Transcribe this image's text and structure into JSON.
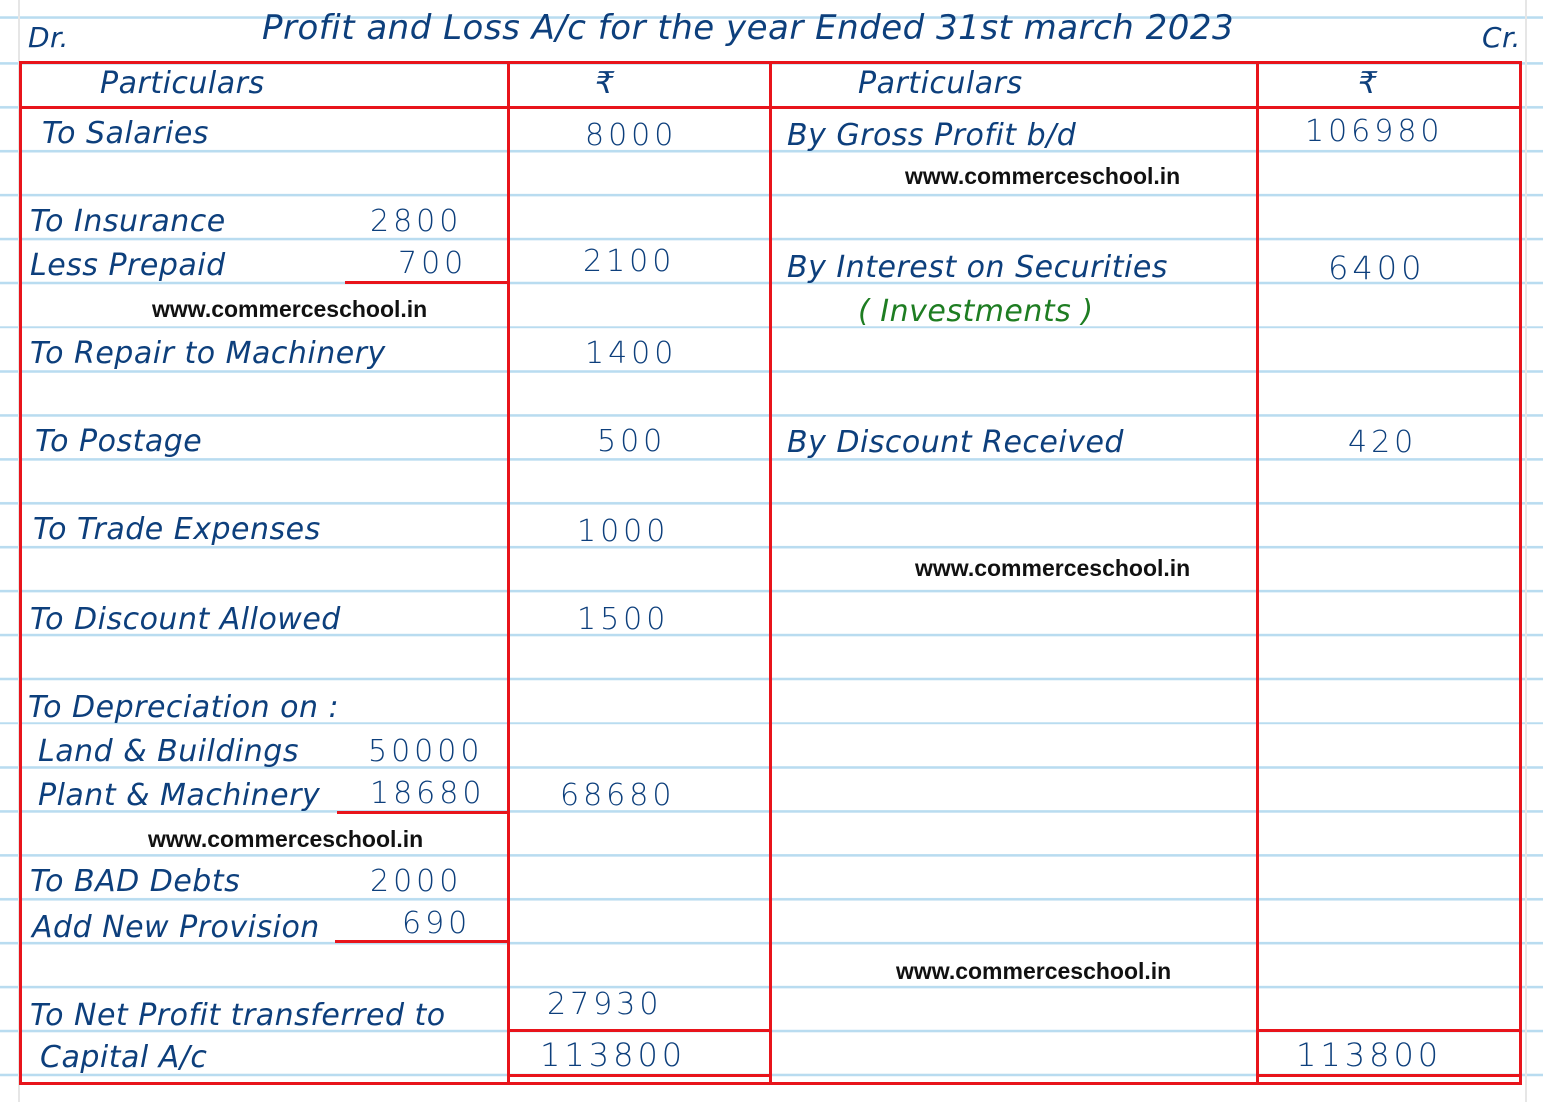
{
  "header": {
    "dr": "Dr.",
    "title": "Profit and Loss A/c for the year Ended 31st march 2023",
    "cr": "Cr."
  },
  "columns": {
    "left_particulars": "Particulars",
    "left_amount": "₹",
    "right_particulars": "Particulars",
    "right_amount": "₹"
  },
  "debit": {
    "salaries": {
      "label": "To Salaries",
      "amount": "8000"
    },
    "insurance": {
      "label": "To Insurance",
      "sub": "2800",
      "less_label": "Less Prepaid",
      "less_sub": "700",
      "amount": "2100"
    },
    "repair": {
      "label": "To Repair to Machinery",
      "amount": "1400"
    },
    "postage": {
      "label": "To Postage",
      "amount": "500"
    },
    "trade": {
      "label": "To Trade Expenses",
      "amount": "1000"
    },
    "discount": {
      "label": "To Discount Allowed",
      "amount": "1500"
    },
    "depreciation": {
      "label": "To Depreciation on :",
      "land_label": "Land & Buildings",
      "land": "50000",
      "plant_label": "Plant & Machinery",
      "plant": "18680",
      "amount": "68680"
    },
    "bad_debts": {
      "label": "To BAD Debts",
      "sub": "2000",
      "add_label": "Add New Provision",
      "add_sub": "690"
    },
    "net_profit": {
      "label": "To Net Profit transferred to",
      "label2": "Capital A/c",
      "amount": "27930"
    },
    "total": "113800"
  },
  "credit": {
    "gross_profit": {
      "label": "By Gross Profit b/d",
      "amount": "106980"
    },
    "interest": {
      "label": "By Interest on Securities",
      "note": "( Investments )",
      "amount": "6400"
    },
    "discount": {
      "label": "By Discount Received",
      "amount": "420"
    },
    "total": "113800"
  },
  "watermarks": [
    "www.commerceschool.in",
    "www.commerceschool.in",
    "www.commerceschool.in",
    "www.commerceschool.in",
    "www.commerceschool.in"
  ],
  "colors": {
    "ink": "#0d3f7c",
    "rule": "#e8141b",
    "note": "#1e7d22",
    "paper_lines": "#b9dcf0"
  }
}
